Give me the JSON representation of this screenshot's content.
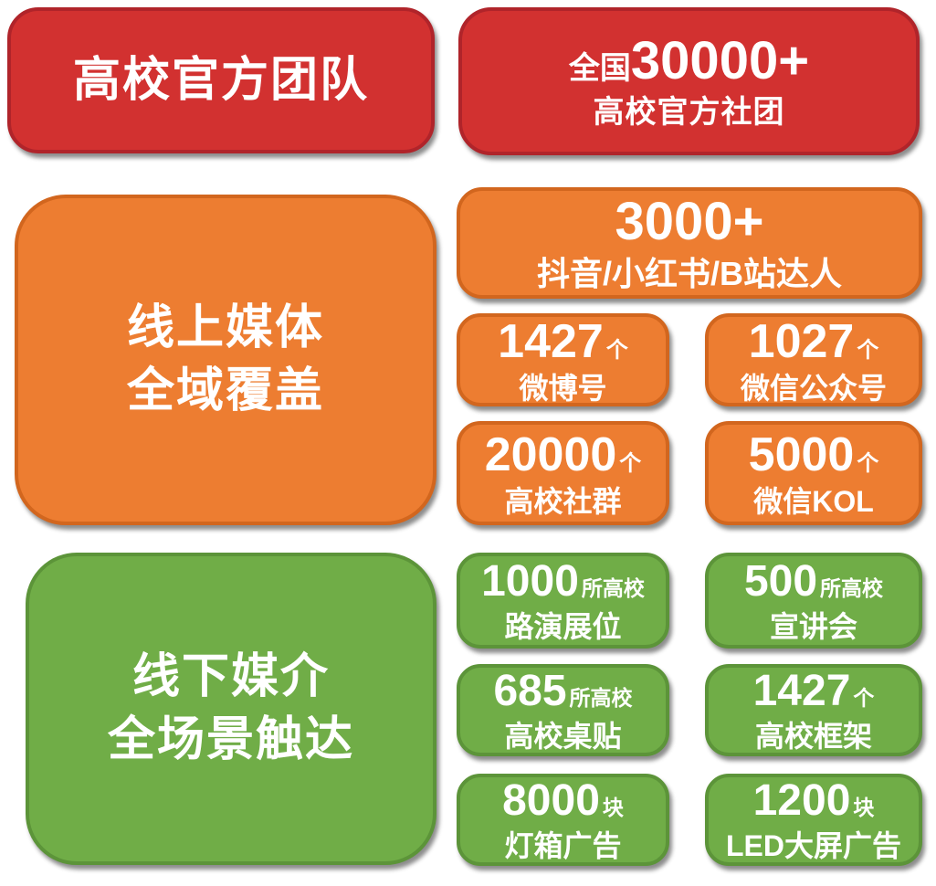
{
  "colors": {
    "red_fill": "#d23130",
    "red_border": "#b0242a",
    "orange_fill": "#ed7d31",
    "orange_border": "#d2661e",
    "green_fill": "#70ad47",
    "green_border": "#5c9439",
    "text": "#ffffff",
    "background": "#ffffff"
  },
  "official_team": {
    "title": "高校官方团队",
    "stat": {
      "prefix": "全国",
      "number": "30000+",
      "label": "高校官方社团"
    }
  },
  "online_media": {
    "title_line1": "线上媒体",
    "title_line2": "全域覆盖",
    "wide": {
      "number": "3000+",
      "label": "抖音/小红书/B站达人"
    },
    "cells": [
      {
        "number": "1427",
        "unit": "个",
        "label": "微博号"
      },
      {
        "number": "1027",
        "unit": "个",
        "label": "微信公众号"
      },
      {
        "number": "20000",
        "unit": "个",
        "label": "高校社群"
      },
      {
        "number": "5000",
        "unit": "个",
        "label": "微信KOL"
      }
    ]
  },
  "offline_media": {
    "title_line1": "线下媒介",
    "title_line2": "全场景触达",
    "cells": [
      {
        "number": "1000",
        "unit": "所高校",
        "label": "路演展位"
      },
      {
        "number": "500",
        "unit": "所高校",
        "label": "宣讲会"
      },
      {
        "number": "685",
        "unit": "所高校",
        "label": "高校桌贴"
      },
      {
        "number": "1427",
        "unit": "个",
        "label": "高校框架"
      },
      {
        "number": "8000",
        "unit": "块",
        "label": "灯箱广告"
      },
      {
        "number": "1200",
        "unit": "块",
        "label": "LED大屏广告"
      }
    ]
  }
}
